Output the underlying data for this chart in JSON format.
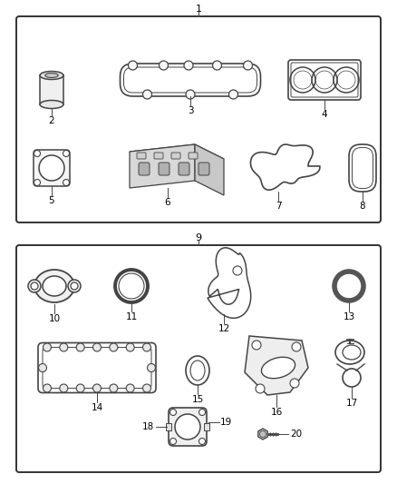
{
  "background": "#ffffff",
  "line_color": "#444444",
  "text_color": "#000000",
  "box1_label": "1",
  "box2_label": "9",
  "figsize": [
    4.38,
    5.33
  ],
  "dpi": 100
}
